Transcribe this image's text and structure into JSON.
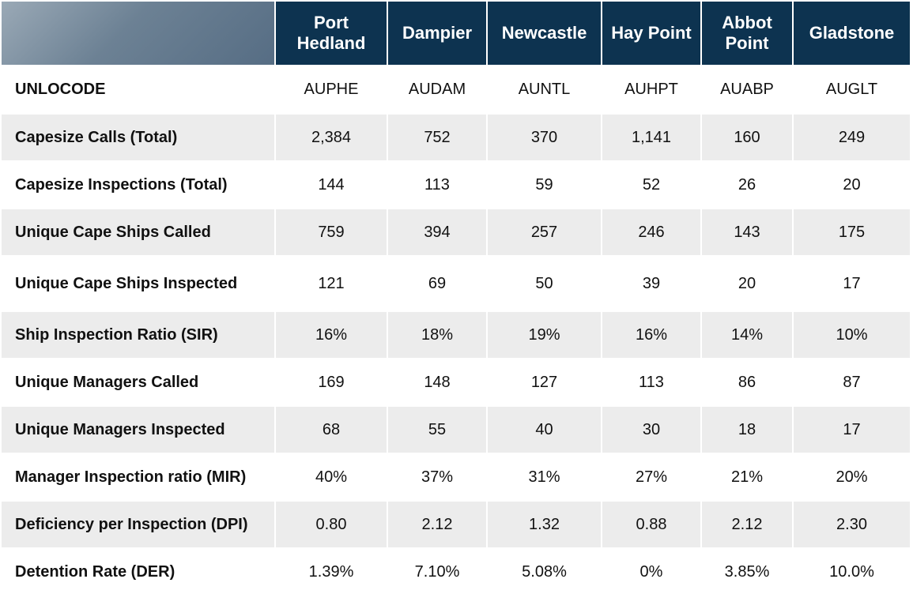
{
  "header": {
    "columns": [
      "Port Hedland",
      "Dampier",
      "Newcastle",
      "Hay Point",
      "Abbot Point",
      "Gladstone"
    ]
  },
  "rows": [
    {
      "label": "UNLOCODE",
      "values": [
        "AUPHE",
        "AUDAM",
        "AUNTL",
        "AUHPT",
        "AUABP",
        "AUGLT"
      ]
    },
    {
      "label": "Capesize Calls (Total)",
      "values": [
        "2,384",
        "752",
        "370",
        "1,141",
        "160",
        "249"
      ]
    },
    {
      "label": "Capesize Inspections (Total)",
      "values": [
        "144",
        "113",
        "59",
        "52",
        "26",
        "20"
      ]
    },
    {
      "label": "Unique Cape Ships Called",
      "values": [
        "759",
        "394",
        "257",
        "246",
        "143",
        "175"
      ]
    },
    {
      "label": "Unique Cape Ships Inspected",
      "values": [
        "121",
        "69",
        "50",
        "39",
        "20",
        "17"
      ]
    },
    {
      "label": "Ship Inspection Ratio (SIR)",
      "values": [
        "16%",
        "18%",
        "19%",
        "16%",
        "14%",
        "10%"
      ]
    },
    {
      "label": "Unique Managers Called",
      "values": [
        "169",
        "148",
        "127",
        "113",
        "86",
        "87"
      ]
    },
    {
      "label": "Unique Managers Inspected",
      "values": [
        "68",
        "55",
        "40",
        "30",
        "18",
        "17"
      ]
    },
    {
      "label": "Manager Inspection ratio (MIR)",
      "values": [
        "40%",
        "37%",
        "31%",
        "27%",
        "21%",
        "20%"
      ]
    },
    {
      "label": "Deficiency per Inspection (DPI)",
      "values": [
        "0.80",
        "2.12",
        "1.32",
        "0.88",
        "2.12",
        "2.30"
      ]
    },
    {
      "label": "Detention Rate (DER)",
      "values": [
        "1.39%",
        "7.10%",
        "5.08%",
        "0%",
        "3.85%",
        "10.0%"
      ]
    }
  ],
  "colors": {
    "header_bg": "#0d3350",
    "header_text": "#ffffff",
    "corner_bg": "#667c91",
    "stripe_bg": "#ececec"
  }
}
